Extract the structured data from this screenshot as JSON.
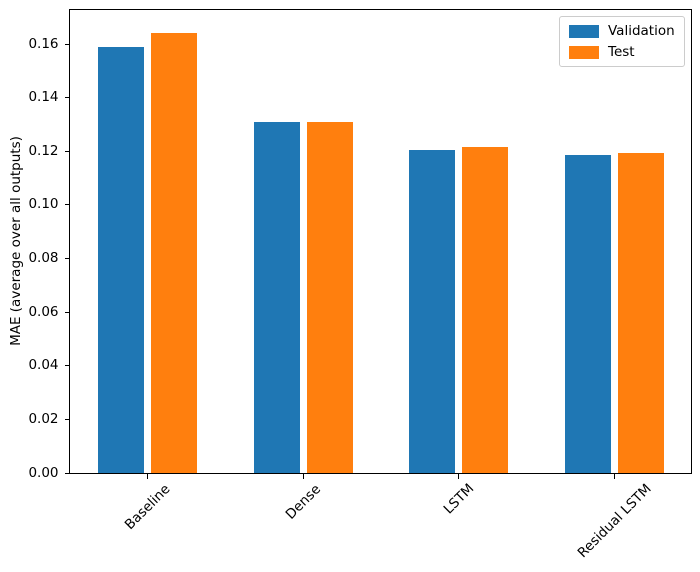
{
  "figure": {
    "background_color": "#ffffff",
    "frame_color": "#000000",
    "text_color": "#000000"
  },
  "chart_data": {
    "type": "bar",
    "title": "",
    "xlabel": "",
    "ylabel": "MAE (average over all outputs)",
    "categories": [
      "Baseline",
      "Dense",
      "LSTM",
      "Residual LSTM"
    ],
    "series": [
      {
        "name": "Validation",
        "color": "#1f77b4",
        "values": [
          0.159,
          0.131,
          0.1205,
          0.1185
        ]
      },
      {
        "name": "Test",
        "color": "#ff7f0e",
        "values": [
          0.164,
          0.131,
          0.1215,
          0.1195
        ]
      }
    ],
    "ylim": [
      0,
      0.1727
    ],
    "yticks": [
      0.0,
      0.02,
      0.04,
      0.06,
      0.08,
      0.1,
      0.12,
      0.14,
      0.16
    ],
    "ytick_labels": [
      "0.00",
      "0.02",
      "0.04",
      "0.06",
      "0.08",
      "0.10",
      "0.12",
      "0.14",
      "0.16"
    ],
    "x_tick_rotation_deg": 45,
    "grid": false,
    "legend": {
      "position": "upper right",
      "entries": [
        "Validation",
        "Test"
      ]
    }
  }
}
